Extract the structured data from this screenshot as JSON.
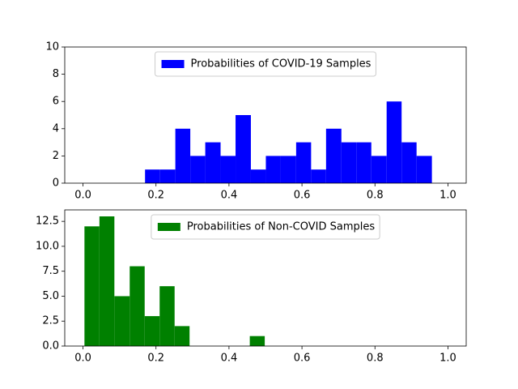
{
  "chart_data": [
    {
      "type": "histogram",
      "bins": [
        0.17,
        0.211,
        0.253,
        0.294,
        0.335,
        0.377,
        0.418,
        0.46,
        0.501,
        0.542,
        0.584,
        0.625,
        0.666,
        0.708,
        0.749,
        0.79,
        0.832,
        0.873,
        0.914,
        0.956
      ],
      "series": [
        {
          "name": "Probabilities of COVID-19 Samples",
          "color": "#0000ff",
          "values": [
            1,
            1,
            4,
            2,
            3,
            2,
            5,
            1,
            2,
            2,
            3,
            1,
            4,
            3,
            3,
            2,
            6,
            3,
            2
          ]
        }
      ],
      "xlim": [
        -0.05,
        1.05
      ],
      "xticks": [
        {
          "value": 0,
          "label": "0.0"
        },
        0.2,
        0.4,
        0.6,
        0.8,
        {
          "value": 1,
          "label": "1.0"
        }
      ],
      "ylim": [
        0,
        10
      ],
      "yticks": [
        0,
        2,
        4,
        6,
        8,
        10
      ],
      "legend": "upper center"
    },
    {
      "type": "histogram",
      "bins": [
        0.004,
        0.045,
        0.086,
        0.128,
        0.169,
        0.21,
        0.251,
        0.292,
        0.334,
        0.375,
        0.416,
        0.457,
        0.498
      ],
      "series": [
        {
          "name": "Probabilities of Non-COVID Samples",
          "color": "#008000",
          "values": [
            12,
            13,
            5,
            8,
            3,
            6,
            2,
            0,
            0,
            0,
            0,
            1
          ]
        }
      ],
      "xlim": [
        -0.05,
        1.05
      ],
      "xticks": [
        {
          "value": 0,
          "label": "0.0"
        },
        0.2,
        0.4,
        0.6,
        0.8,
        {
          "value": 1,
          "label": "1.0"
        }
      ],
      "ylim": [
        0,
        13.65
      ],
      "yticks": [
        {
          "value": 0,
          "label": "0.0"
        },
        2.5,
        {
          "value": 5,
          "label": "5.0"
        },
        7.5,
        {
          "value": 10,
          "label": "10.0"
        },
        12.5
      ],
      "legend": "upper center"
    }
  ]
}
